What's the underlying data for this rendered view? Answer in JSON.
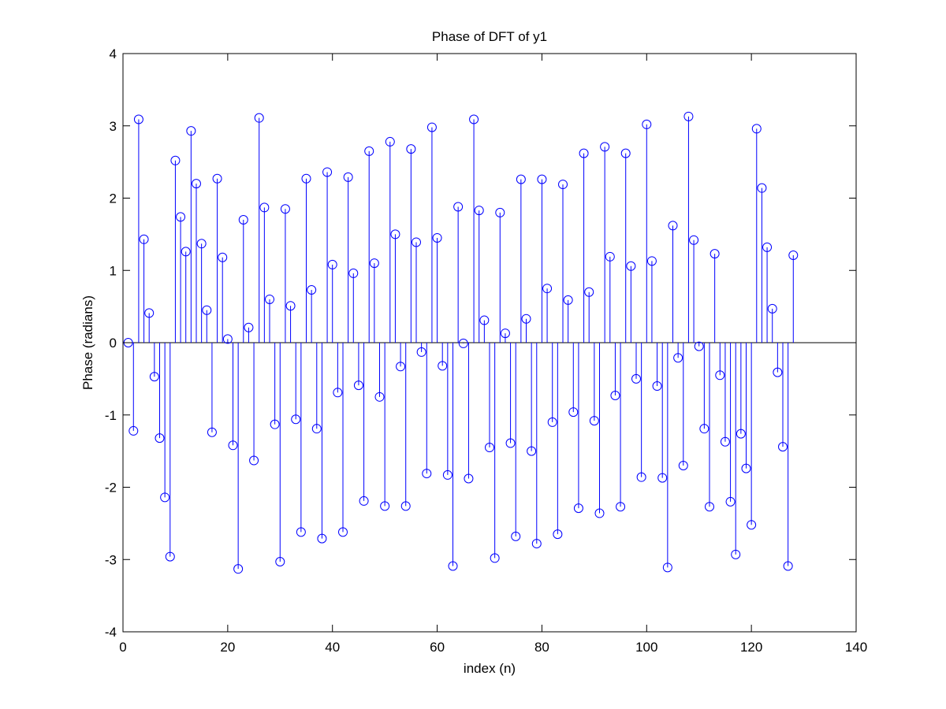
{
  "chart_data": {
    "type": "stem",
    "title": "Phase of DFT of y1",
    "xlabel": "index (n)",
    "ylabel": "Phase (radians)",
    "xlim": [
      0,
      140
    ],
    "ylim": [
      -4,
      4
    ],
    "xticks": [
      0,
      20,
      40,
      60,
      80,
      100,
      120,
      140
    ],
    "yticks": [
      -4,
      -3,
      -2,
      -1,
      0,
      1,
      2,
      3,
      4
    ],
    "xtick_labels": [
      "0",
      "20",
      "40",
      "60",
      "80",
      "100",
      "120",
      "140"
    ],
    "ytick_labels": [
      "-4",
      "-3",
      "-2",
      "-1",
      "0",
      "1",
      "2",
      "3",
      "4"
    ],
    "grid": false,
    "marker": "circle",
    "colors": {
      "stem": "#0000ff",
      "baseline": "#000000",
      "axes": "#000000"
    },
    "x": [
      1,
      2,
      3,
      4,
      5,
      6,
      7,
      8,
      9,
      10,
      11,
      12,
      13,
      14,
      15,
      16,
      17,
      18,
      19,
      20,
      21,
      22,
      23,
      24,
      25,
      26,
      27,
      28,
      29,
      30,
      31,
      32,
      33,
      34,
      35,
      36,
      37,
      38,
      39,
      40,
      41,
      42,
      43,
      44,
      45,
      46,
      47,
      48,
      49,
      50,
      51,
      52,
      53,
      54,
      55,
      56,
      57,
      58,
      59,
      60,
      61,
      62,
      63,
      64,
      65,
      66,
      67,
      68,
      69,
      70,
      71,
      72,
      73,
      74,
      75,
      76,
      77,
      78,
      79,
      80,
      81,
      82,
      83,
      84,
      85,
      86,
      87,
      88,
      89,
      90,
      91,
      92,
      93,
      94,
      95,
      96,
      97,
      98,
      99,
      100,
      101,
      102,
      103,
      104,
      105,
      106,
      107,
      108,
      109,
      110,
      111,
      112,
      113,
      114,
      115,
      116,
      117,
      118,
      119,
      120,
      121,
      122,
      123,
      124,
      125,
      126,
      127,
      128
    ],
    "y": [
      0,
      -1.22,
      3.09,
      1.43,
      0.41,
      -0.47,
      -1.32,
      -2.14,
      -2.96,
      2.52,
      1.74,
      1.26,
      2.93,
      2.2,
      1.37,
      0.45,
      -1.24,
      2.27,
      1.18,
      0.05,
      -1.42,
      -3.13,
      1.7,
      0.21,
      -1.63,
      3.11,
      1.87,
      0.6,
      -1.13,
      -3.03,
      1.85,
      0.51,
      -1.06,
      -2.62,
      2.27,
      0.73,
      -1.19,
      -2.71,
      2.36,
      1.08,
      -0.69,
      -2.62,
      2.29,
      0.96,
      -0.59,
      -2.19,
      2.65,
      1.1,
      -0.75,
      -2.26,
      2.78,
      1.5,
      -0.33,
      -2.26,
      2.68,
      1.39,
      -0.13,
      -1.81,
      2.98,
      1.45,
      -0.32,
      -1.83,
      -3.09,
      1.88,
      -0.01,
      -1.88,
      3.09,
      1.83,
      0.31,
      -1.45,
      -2.98,
      1.8,
      0.13,
      -1.39,
      -2.68,
      2.26,
      0.33,
      -1.5,
      -2.78,
      2.26,
      0.75,
      -1.1,
      -2.65,
      2.19,
      0.59,
      -0.96,
      -2.29,
      2.62,
      0.7,
      -1.08,
      -2.36,
      2.71,
      1.19,
      -0.73,
      -2.27,
      2.62,
      1.06,
      -0.5,
      -1.86,
      3.02,
      1.13,
      -0.6,
      -1.87,
      -3.11,
      1.62,
      -0.21,
      -1.7,
      3.13,
      1.42,
      -0.05,
      -1.19,
      -2.27,
      1.23,
      -0.45,
      -1.37,
      -2.2,
      -2.93,
      -1.26,
      -1.74,
      -2.52,
      2.96,
      2.14,
      1.32,
      0.47,
      -0.41,
      -1.44,
      -3.09,
      1.21
    ]
  }
}
